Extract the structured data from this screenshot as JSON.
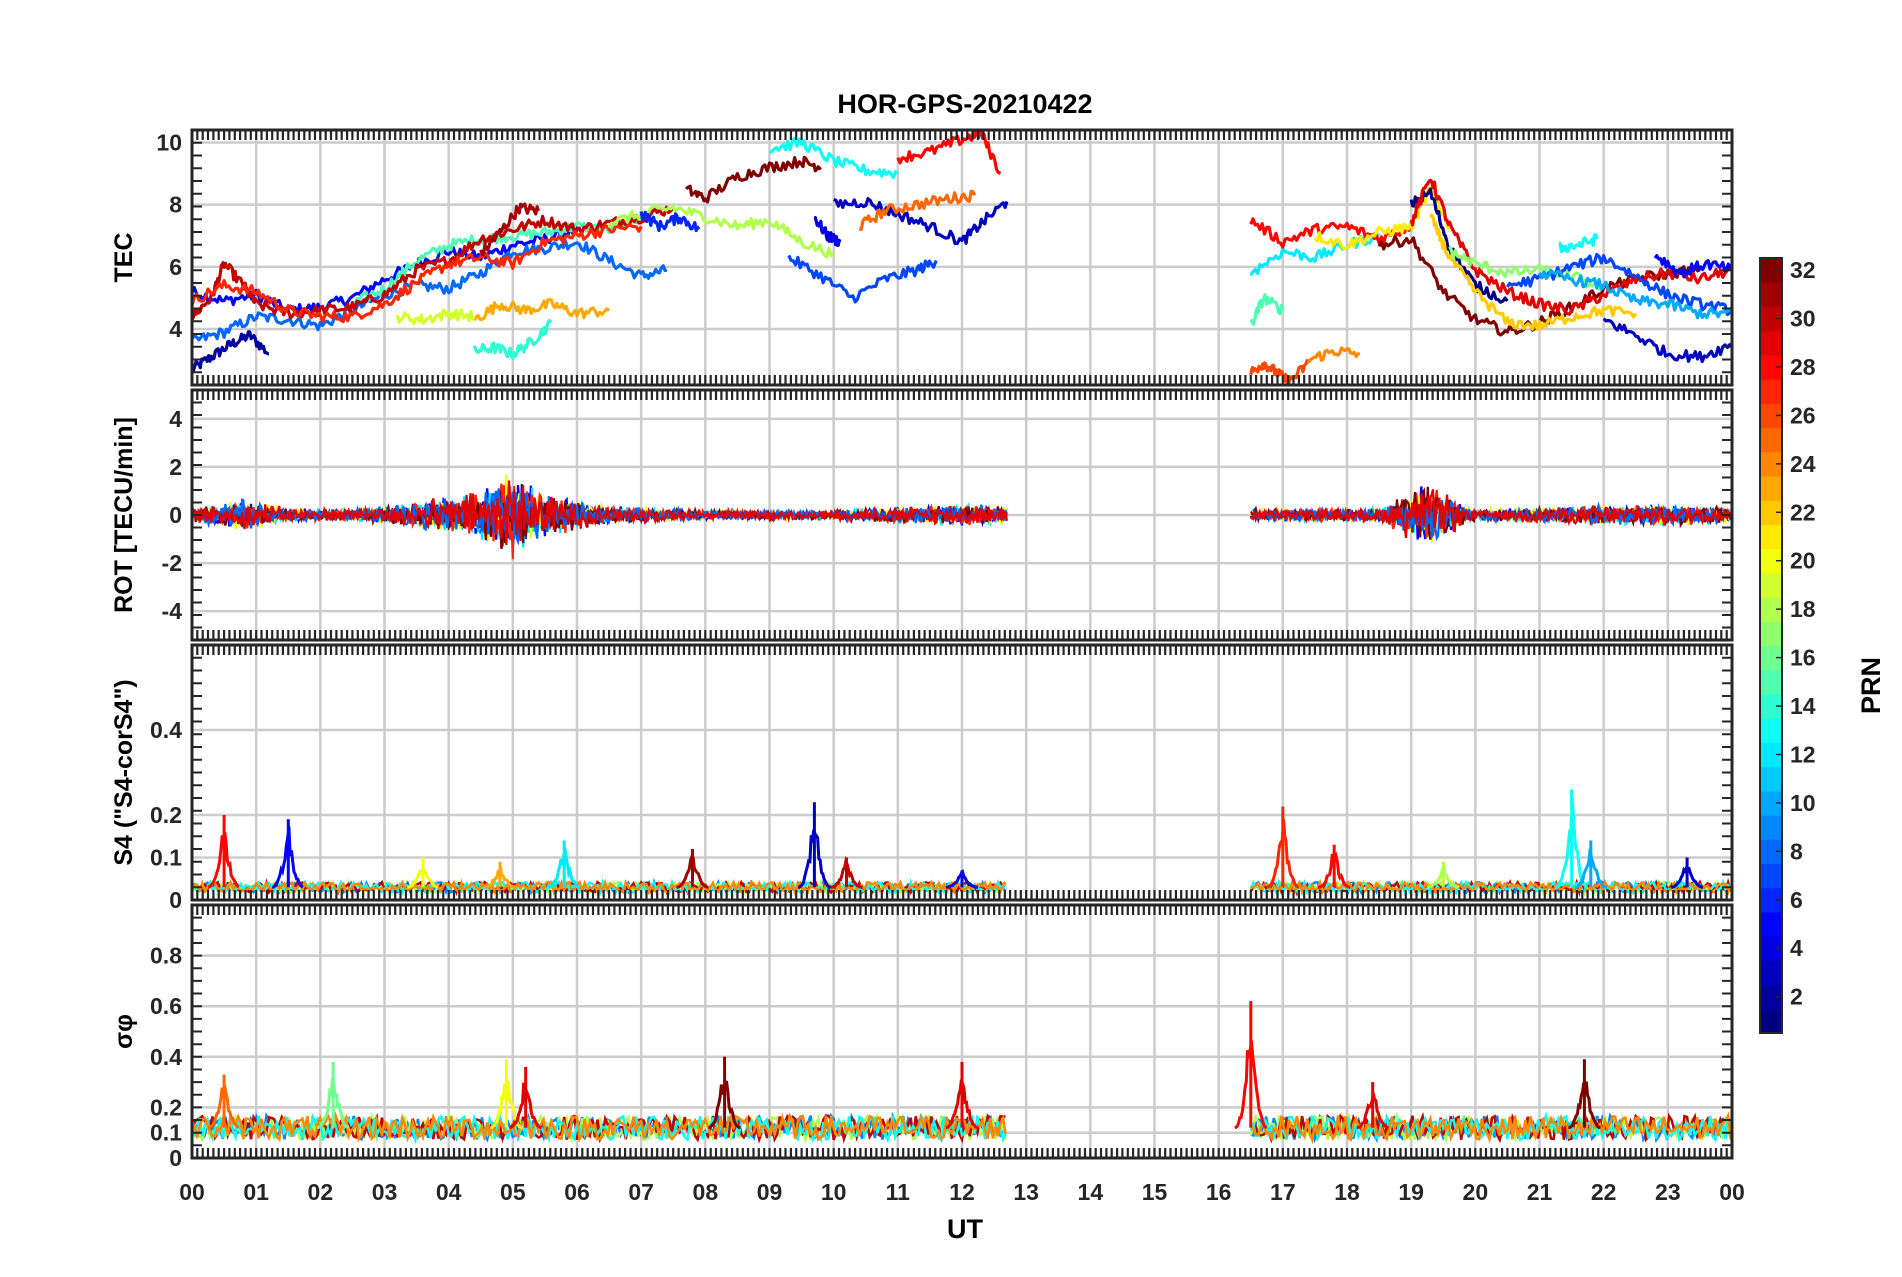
{
  "figure": {
    "title": "HOR-GPS-20210422",
    "xlabel": "UT",
    "x_ticks": [
      "00",
      "01",
      "02",
      "03",
      "04",
      "05",
      "06",
      "07",
      "08",
      "09",
      "10",
      "11",
      "12",
      "13",
      "14",
      "15",
      "16",
      "17",
      "18",
      "19",
      "20",
      "21",
      "22",
      "23",
      "00"
    ]
  },
  "colorbar": {
    "label": "PRN",
    "range": [
      1,
      32
    ],
    "ticks": [
      "2",
      "4",
      "6",
      "8",
      "10",
      "12",
      "14",
      "16",
      "18",
      "20",
      "22",
      "24",
      "26",
      "28",
      "30",
      "32"
    ],
    "colormap": "jet"
  },
  "chart_data": [
    {
      "type": "line",
      "panel": "tec",
      "ylabel": "TEC",
      "ylim": [
        2.2,
        10.4
      ],
      "yticks": [
        "4",
        "6",
        "8",
        "10"
      ],
      "grid": true,
      "x_units": "hours UT",
      "data_gap": [
        12.7,
        16.5
      ],
      "series": [
        {
          "prn": 2,
          "x": [
            0.0,
            0.3,
            0.6,
            0.9,
            1.2
          ],
          "y": [
            2.7,
            3.1,
            3.5,
            3.8,
            3.2
          ]
        },
        {
          "prn": 5,
          "x": [
            0.0,
            0.5,
            1.0,
            1.5,
            2.0,
            2.5,
            3.0,
            3.5,
            4.0,
            4.5,
            5.0,
            5.5,
            6.0
          ],
          "y": [
            5.2,
            4.9,
            5.1,
            4.6,
            4.7,
            5.0,
            5.6,
            6.1,
            6.5,
            6.3,
            6.7,
            6.9,
            7.2
          ]
        },
        {
          "prn": 8,
          "x": [
            0.0,
            0.5,
            1.0,
            1.5,
            2.0,
            2.5,
            3.0,
            3.5,
            4.0,
            4.5,
            5.0,
            5.5,
            6.0,
            6.5,
            7.0,
            7.4
          ],
          "y": [
            3.6,
            3.9,
            4.4,
            4.3,
            4.1,
            4.6,
            5.1,
            5.4,
            5.3,
            5.8,
            6.5,
            6.6,
            6.8,
            6.2,
            5.7,
            5.9
          ]
        },
        {
          "prn": 15,
          "x": [
            2.5,
            3.0,
            3.5,
            4.0,
            4.5,
            5.0,
            5.5,
            6.0,
            6.5,
            7.0
          ],
          "y": [
            4.8,
            5.3,
            6.2,
            6.7,
            6.9,
            7.0,
            7.1,
            7.3,
            7.2,
            7.6
          ]
        },
        {
          "prn": 30,
          "x": [
            0.0,
            0.3,
            0.5,
            0.8,
            1.0,
            1.5,
            2.0,
            2.5,
            3.0,
            3.5,
            4.0,
            4.5,
            5.0,
            5.5,
            6.0,
            6.5,
            7.0,
            7.5
          ],
          "y": [
            4.4,
            5.0,
            6.1,
            5.4,
            4.8,
            4.5,
            4.6,
            4.7,
            5.1,
            5.9,
            6.2,
            6.9,
            7.2,
            7.5,
            7.2,
            7.4,
            7.6,
            7.9
          ]
        },
        {
          "prn": 27,
          "x": [
            0.0,
            0.5,
            1.0,
            1.5,
            2.0,
            2.5,
            3.0,
            3.5,
            4.0,
            4.5,
            5.0,
            5.5,
            6.0,
            6.5,
            7.0
          ],
          "y": [
            4.9,
            5.4,
            5.2,
            4.6,
            4.4,
            4.4,
            4.8,
            5.5,
            6.1,
            6.3,
            6.1,
            6.8,
            7.0,
            7.2,
            7.3
          ]
        },
        {
          "prn": 31,
          "x": [
            4.5,
            4.8,
            5.1,
            5.4
          ],
          "y": [
            6.4,
            7.1,
            7.9,
            7.8
          ]
        },
        {
          "prn": 23,
          "x": [
            4.4,
            4.8,
            5.2,
            5.6,
            6.0,
            6.5
          ],
          "y": [
            4.3,
            4.8,
            4.6,
            4.8,
            4.5,
            4.6
          ]
        },
        {
          "prn": 14,
          "x": [
            4.4,
            4.7,
            5.0,
            5.3,
            5.6
          ],
          "y": [
            3.3,
            3.4,
            3.2,
            3.6,
            4.2
          ]
        },
        {
          "prn": 19,
          "x": [
            3.2,
            3.6,
            4.0,
            4.4
          ],
          "y": [
            4.4,
            4.3,
            4.5,
            4.4
          ]
        },
        {
          "prn": 32,
          "x": [
            7.7,
            8.0,
            8.5,
            9.0,
            9.5,
            9.8
          ],
          "y": [
            8.5,
            8.2,
            8.9,
            9.2,
            9.4,
            9.2
          ]
        },
        {
          "prn": 13,
          "x": [
            9.0,
            9.5,
            10.0,
            10.5,
            11.0
          ],
          "y": [
            9.8,
            10.0,
            9.4,
            9.1,
            9.0
          ]
        },
        {
          "prn": 4,
          "x": [
            9.7,
            9.9,
            10.1
          ],
          "y": [
            7.6,
            7.0,
            6.8
          ]
        },
        {
          "prn": 7,
          "x": [
            9.3,
            9.8,
            10.3,
            10.8,
            11.3,
            11.6
          ],
          "y": [
            6.3,
            5.7,
            5.0,
            5.6,
            5.9,
            6.2
          ]
        },
        {
          "prn": 18,
          "x": [
            6.5,
            7.0,
            7.5,
            8.0,
            8.5,
            9.0,
            9.5,
            10.0
          ],
          "y": [
            7.4,
            7.7,
            7.9,
            7.6,
            7.3,
            7.5,
            6.8,
            6.4
          ]
        },
        {
          "prn": 3,
          "x": [
            10.0,
            10.5,
            11.0,
            11.5,
            12.0,
            12.3,
            12.7
          ],
          "y": [
            8.0,
            8.1,
            7.7,
            7.3,
            6.8,
            7.4,
            8.1
          ]
        },
        {
          "prn": 25,
          "x": [
            10.4,
            10.8,
            11.3,
            11.8,
            12.2
          ],
          "y": [
            7.3,
            7.8,
            8.0,
            8.2,
            8.3
          ]
        },
        {
          "prn": 28,
          "x": [
            11.0,
            11.5,
            12.0,
            12.3,
            12.6
          ],
          "y": [
            9.5,
            9.7,
            10.1,
            10.3,
            9.0
          ]
        },
        {
          "prn": 6,
          "x": [
            7.0,
            7.3,
            7.6,
            7.9
          ],
          "y": [
            7.7,
            7.3,
            7.6,
            7.2
          ]
        },
        {
          "prn": 26,
          "x": [
            16.5,
            16.7,
            16.9,
            17.1,
            17.4
          ],
          "y": [
            2.6,
            2.9,
            2.6,
            2.3,
            2.9
          ]
        },
        {
          "prn": 24,
          "x": [
            17.4,
            17.8,
            18.2
          ],
          "y": [
            3.0,
            3.3,
            3.2
          ]
        },
        {
          "prn": 15,
          "x": [
            16.5,
            16.7,
            17.0
          ],
          "y": [
            4.1,
            5.0,
            4.6
          ]
        },
        {
          "prn": 12,
          "x": [
            16.5,
            17.0,
            17.5,
            18.0,
            18.5
          ],
          "y": [
            5.8,
            6.5,
            6.3,
            6.7,
            7.0
          ]
        },
        {
          "prn": 28,
          "x": [
            16.5,
            17.0,
            17.5,
            18.0,
            18.5,
            19.0
          ],
          "y": [
            7.5,
            6.8,
            7.2,
            7.3,
            6.9,
            7.3
          ]
        },
        {
          "prn": 21,
          "x": [
            17.5,
            18.0,
            18.5,
            19.0,
            19.3,
            19.6
          ],
          "y": [
            7.0,
            6.7,
            7.1,
            7.3,
            8.5,
            7.3
          ]
        },
        {
          "prn": 32,
          "x": [
            18.5,
            19.0,
            19.5,
            20.0,
            20.5,
            21.0,
            21.5,
            22.0,
            22.5,
            23.0,
            23.5
          ],
          "y": [
            6.7,
            6.9,
            5.2,
            4.3,
            3.9,
            4.2,
            4.7,
            5.3,
            5.6,
            5.8,
            5.9
          ]
        },
        {
          "prn": 1,
          "x": [
            19.0,
            19.3,
            19.6,
            20.0,
            20.5
          ],
          "y": [
            8.0,
            8.4,
            6.6,
            5.4,
            4.9
          ]
        },
        {
          "prn": 29,
          "x": [
            19.0,
            19.3,
            19.6,
            20.0,
            20.5,
            21.0,
            21.5,
            22.0,
            22.5,
            23.0,
            23.5,
            24.0
          ],
          "y": [
            7.4,
            8.9,
            7.3,
            5.9,
            5.2,
            4.8,
            4.6,
            5.1,
            5.6,
            5.8,
            5.6,
            5.9
          ]
        },
        {
          "prn": 22,
          "x": [
            19.3,
            19.6,
            20.0,
            20.5,
            21.0,
            21.5,
            22.0,
            22.5
          ],
          "y": [
            7.6,
            6.3,
            5.2,
            4.2,
            4.1,
            4.4,
            4.6,
            4.5
          ]
        },
        {
          "prn": 17,
          "x": [
            19.6,
            20.0,
            20.5,
            21.0,
            21.5,
            22.0
          ],
          "y": [
            6.5,
            6.1,
            5.8,
            5.9,
            5.7,
            5.3
          ]
        },
        {
          "prn": 13,
          "x": [
            21.3,
            21.6,
            21.9
          ],
          "y": [
            6.6,
            6.7,
            6.9
          ]
        },
        {
          "prn": 7,
          "x": [
            20.5,
            21.0,
            21.5,
            22.0,
            22.5,
            23.0,
            23.5,
            24.0
          ],
          "y": [
            5.4,
            5.6,
            6.0,
            6.3,
            5.7,
            5.1,
            4.8,
            4.6
          ]
        },
        {
          "prn": 10,
          "x": [
            21.0,
            21.5,
            22.0,
            22.5,
            23.0,
            23.5,
            24.0
          ],
          "y": [
            5.8,
            5.6,
            5.4,
            4.9,
            4.8,
            4.5,
            4.5
          ]
        },
        {
          "prn": 3,
          "x": [
            22.0,
            22.5,
            23.0,
            23.5,
            24.0
          ],
          "y": [
            4.3,
            3.8,
            3.2,
            3.1,
            3.5
          ]
        },
        {
          "prn": 5,
          "x": [
            22.8,
            23.2,
            23.6,
            24.0
          ],
          "y": [
            6.4,
            5.8,
            6.1,
            5.9
          ]
        }
      ]
    },
    {
      "type": "line",
      "panel": "rot",
      "ylabel": "ROT [TECU/min]",
      "ylim": [
        -5.2,
        5.2
      ],
      "yticks": [
        "-4",
        "-2",
        "0",
        "2",
        "4"
      ],
      "grid": true,
      "data_gap": [
        12.7,
        16.5
      ],
      "envelope": [
        {
          "x": 0.0,
          "amp": 0.3
        },
        {
          "x": 0.8,
          "amp": 0.7
        },
        {
          "x": 1.5,
          "amp": 0.3
        },
        {
          "x": 2.5,
          "amp": 0.25
        },
        {
          "x": 3.5,
          "amp": 0.6
        },
        {
          "x": 4.5,
          "amp": 1.1
        },
        {
          "x": 5.0,
          "amp": 1.9
        },
        {
          "x": 5.5,
          "amp": 1.0
        },
        {
          "x": 6.5,
          "amp": 0.4
        },
        {
          "x": 8.0,
          "amp": 0.2
        },
        {
          "x": 10.0,
          "amp": 0.2
        },
        {
          "x": 12.0,
          "amp": 0.5
        },
        {
          "x": 12.7,
          "amp": 0.4
        },
        {
          "x": 16.5,
          "amp": 0.25
        },
        {
          "x": 18.5,
          "amp": 0.3
        },
        {
          "x": 19.2,
          "amp": 1.5
        },
        {
          "x": 20.0,
          "amp": 0.25
        },
        {
          "x": 23.0,
          "amp": 0.5
        },
        {
          "x": 24.0,
          "amp": 0.3
        }
      ]
    },
    {
      "type": "line",
      "panel": "s4",
      "ylabel": "S4 (\"S4-corS4\")",
      "ylim": [
        0,
        0.6
      ],
      "yticks": [
        "0",
        "0.1",
        "0.2",
        "0.4"
      ],
      "grid": true,
      "data_gap": [
        12.7,
        16.5
      ],
      "peaks": [
        {
          "x": 0.5,
          "y": 0.2,
          "prn": 28
        },
        {
          "x": 1.5,
          "y": 0.19,
          "prn": 5
        },
        {
          "x": 3.6,
          "y": 0.1,
          "prn": 20
        },
        {
          "x": 4.8,
          "y": 0.09,
          "prn": 23
        },
        {
          "x": 5.8,
          "y": 0.14,
          "prn": 12
        },
        {
          "x": 7.8,
          "y": 0.12,
          "prn": 31
        },
        {
          "x": 9.7,
          "y": 0.23,
          "prn": 3
        },
        {
          "x": 10.2,
          "y": 0.1,
          "prn": 30
        },
        {
          "x": 12.0,
          "y": 0.07,
          "prn": 4
        },
        {
          "x": 17.0,
          "y": 0.22,
          "prn": 27
        },
        {
          "x": 17.8,
          "y": 0.13,
          "prn": 28
        },
        {
          "x": 19.5,
          "y": 0.09,
          "prn": 18
        },
        {
          "x": 21.5,
          "y": 0.26,
          "prn": 13
        },
        {
          "x": 21.8,
          "y": 0.14,
          "prn": 10
        },
        {
          "x": 23.3,
          "y": 0.1,
          "prn": 3
        }
      ],
      "baseline": 0.03
    },
    {
      "type": "line",
      "panel": "sigma_phi",
      "ylabel": "σφ",
      "ylim": [
        0,
        1.0
      ],
      "yticks": [
        "0",
        "0.1",
        "0.2",
        "0.4",
        "0.6",
        "0.8"
      ],
      "grid": true,
      "data_gap": [
        12.7,
        16.5
      ],
      "peaks": [
        {
          "x": 0.5,
          "y": 0.33,
          "prn": 25
        },
        {
          "x": 2.2,
          "y": 0.38,
          "prn": 16
        },
        {
          "x": 4.9,
          "y": 0.39,
          "prn": 20
        },
        {
          "x": 5.2,
          "y": 0.36,
          "prn": 29
        },
        {
          "x": 8.3,
          "y": 0.4,
          "prn": 32
        },
        {
          "x": 12.0,
          "y": 0.38,
          "prn": 29
        },
        {
          "x": 16.5,
          "y": 0.62,
          "prn": 28
        },
        {
          "x": 18.4,
          "y": 0.3,
          "prn": 29
        },
        {
          "x": 21.7,
          "y": 0.39,
          "prn": 32
        }
      ],
      "baseline": 0.12
    }
  ]
}
